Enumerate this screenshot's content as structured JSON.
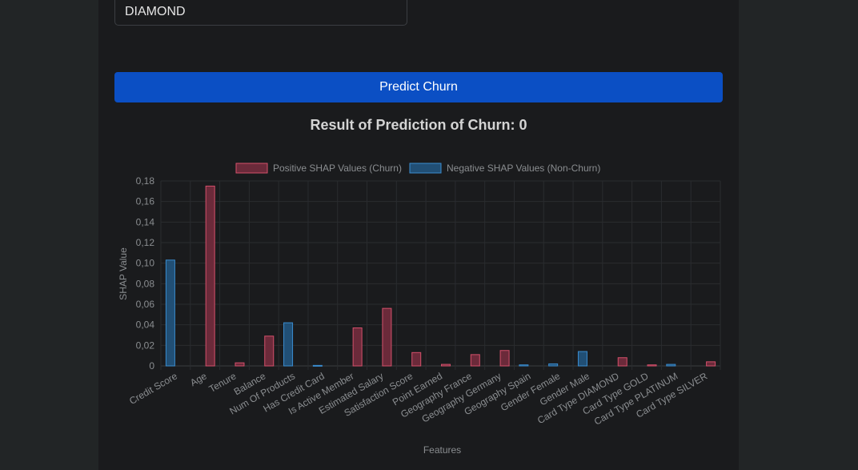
{
  "form": {
    "card_type_value": "DIAMOND"
  },
  "actions": {
    "predict_label": "Predict Churn"
  },
  "result": {
    "title": "Result of Prediction of Churn: 0"
  },
  "colors": {
    "positive_fill": "#6b2a3a",
    "positive_stroke": "#d4506b",
    "negative_fill": "#214f75",
    "negative_stroke": "#3a8ccf",
    "button": "#0b4fc4"
  },
  "chart_data": {
    "type": "bar",
    "xlabel": "Features",
    "ylabel": "SHAP Value",
    "ylim": [
      0,
      0.18
    ],
    "yticks": [
      "0",
      "0,02",
      "0,04",
      "0,06",
      "0,08",
      "0,10",
      "0,12",
      "0,14",
      "0,16",
      "0,18"
    ],
    "grid": true,
    "legend_position": "top-center",
    "categories": [
      "Credit Score",
      "Age",
      "Tenure",
      "Balance",
      "Num Of Products",
      "Has Credit Card",
      "Is Active Member",
      "Estimated Salary",
      "Satisfaction Score",
      "Point Earned",
      "Geography France",
      "Geography Germany",
      "Geography Spain",
      "Gender Female",
      "Gender Male",
      "Card Type DIAMOND",
      "Card Type GOLD",
      "Card Type PLATINUM",
      "Card Type SILVER"
    ],
    "series": [
      {
        "name": "Positive SHAP Values (Churn)",
        "values": [
          0,
          0.175,
          0.003,
          0.029,
          0,
          0,
          0.037,
          0.056,
          0.013,
          0.0015,
          0.011,
          0.015,
          0,
          0,
          0,
          0.008,
          0.001,
          0,
          0.004
        ]
      },
      {
        "name": "Negative SHAP Values (Non-Churn)",
        "values": [
          0.103,
          0,
          0,
          0,
          0.042,
          0.0005,
          0,
          0,
          0,
          0,
          0,
          0,
          0.001,
          0.002,
          0.014,
          0,
          0,
          0.0015,
          0
        ]
      }
    ]
  }
}
